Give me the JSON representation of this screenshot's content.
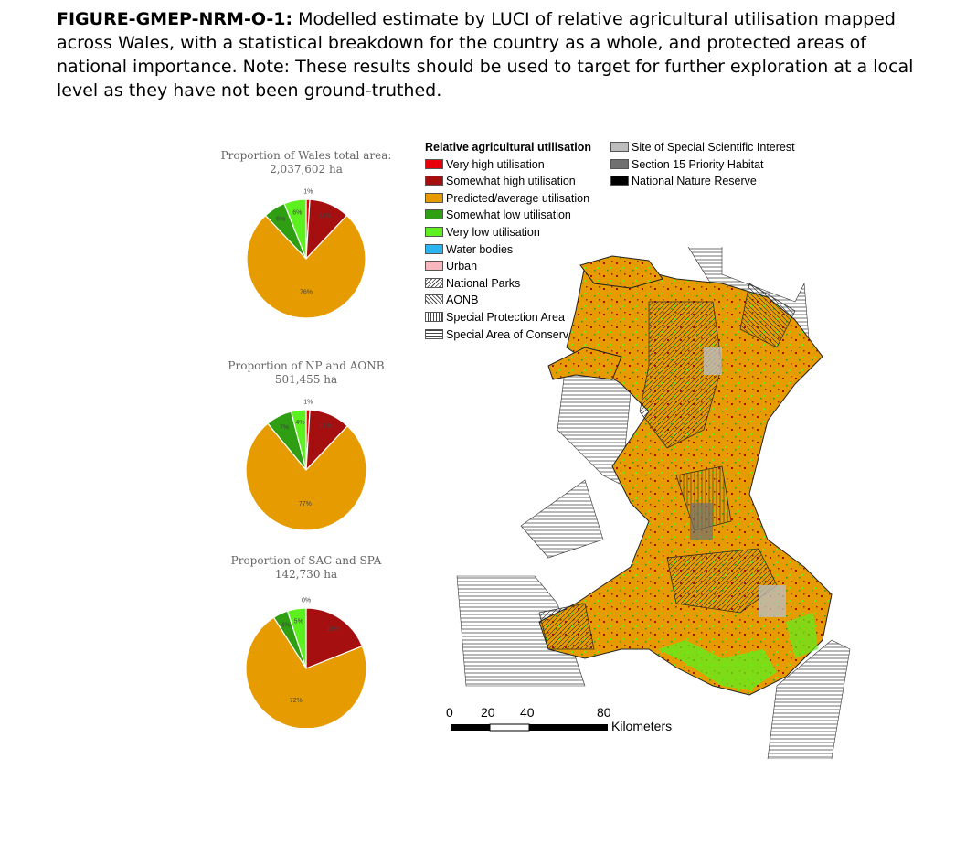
{
  "caption": {
    "label": "FIGURE-GMEP-NRM-O-1:",
    "text": " Modelled estimate by LUCI of relative agricultural utilisation mapped across Wales, with a statistical breakdown for the country as a whole, and protected areas of national importance.  Note: These results should be used to target for further exploration at a local level as they have not been ground-truthed."
  },
  "colors": {
    "very_high": "#e8000b",
    "somewhat_high": "#a50f0f",
    "average": "#e69c00",
    "somewhat_low": "#2f9e12",
    "very_low": "#5cf01e",
    "water": "#2bb5f0",
    "urban": "#f7b7bd",
    "sssi": "#bdbdbd",
    "priority": "#707070",
    "nnr": "#000000"
  },
  "chart_data": [
    {
      "type": "pie",
      "title": "Proportion of Wales total area:",
      "subtitle": "2,037,602  ha",
      "slices": [
        {
          "category": "Very high utilisation",
          "value": 1,
          "label": "1%",
          "color": "#e8000b"
        },
        {
          "category": "Somewhat high utilisation",
          "value": 11,
          "label": "11%",
          "color": "#a50f0f"
        },
        {
          "category": "Predicted/average utilisation",
          "value": 76,
          "label": "76%",
          "color": "#e69c00"
        },
        {
          "category": "Somewhat low utilisation",
          "value": 6,
          "label": "6%",
          "color": "#2f9e12"
        },
        {
          "category": "Very low utilisation",
          "value": 6,
          "label": "6%",
          "color": "#5cf01e"
        }
      ]
    },
    {
      "type": "pie",
      "title": "Proportion of NP and AONB",
      "subtitle": "501,455 ha",
      "slices": [
        {
          "category": "Very high utilisation",
          "value": 1,
          "label": "1%",
          "color": "#e8000b"
        },
        {
          "category": "Somewhat high utilisation",
          "value": 11,
          "label": "11%",
          "color": "#a50f0f"
        },
        {
          "category": "Predicted/average utilisation",
          "value": 77,
          "label": "77%",
          "color": "#e69c00"
        },
        {
          "category": "Somewhat low utilisation",
          "value": 7,
          "label": "7%",
          "color": "#2f9e12"
        },
        {
          "category": "Very low utilisation",
          "value": 4,
          "label": "4%",
          "color": "#5cf01e"
        }
      ]
    },
    {
      "type": "pie",
      "title": "Proportion of SAC and SPA",
      "subtitle": "142,730 ha",
      "slices": [
        {
          "category": "Very high utilisation",
          "value": 0,
          "label": "0%",
          "color": "#e8000b"
        },
        {
          "category": "Somewhat high utilisation",
          "value": 19,
          "label": "19%",
          "color": "#a50f0f"
        },
        {
          "category": "Predicted/average utilisation",
          "value": 72,
          "label": "72%",
          "color": "#e69c00"
        },
        {
          "category": "Somewhat low utilisation",
          "value": 4,
          "label": "4%",
          "color": "#2f9e12"
        },
        {
          "category": "Very low utilisation",
          "value": 5,
          "label": "5%",
          "color": "#5cf01e"
        }
      ]
    }
  ],
  "legend": {
    "title": "Relative agricultural utilisation",
    "items": [
      {
        "label": "Very high utilisation",
        "key": "very_high",
        "pattern": "solid",
        "color": "#e8000b"
      },
      {
        "label": "Somewhat high utilisation",
        "key": "somewhat_high",
        "pattern": "solid",
        "color": "#a50f0f"
      },
      {
        "label": "Predicted/average utilisation",
        "key": "average",
        "pattern": "solid",
        "color": "#e69c00"
      },
      {
        "label": "Somewhat low utilisation",
        "key": "somewhat_low",
        "pattern": "solid",
        "color": "#2f9e12"
      },
      {
        "label": "Very low utilisation",
        "key": "very_low",
        "pattern": "solid",
        "color": "#5cf01e"
      },
      {
        "label": "Water bodies",
        "key": "water",
        "pattern": "solid",
        "color": "#2bb5f0"
      },
      {
        "label": "Urban",
        "key": "urban",
        "pattern": "solid",
        "color": "#f7b7bd"
      },
      {
        "label": "National Parks",
        "key": "np",
        "pattern": "diag-back"
      },
      {
        "label": "AONB",
        "key": "aonb",
        "pattern": "diag-fwd"
      },
      {
        "label": "Special Protection Area",
        "key": "spa",
        "pattern": "vertical"
      },
      {
        "label": "Special Area of Conservation",
        "key": "sac",
        "pattern": "horizontal"
      }
    ],
    "items2": [
      {
        "label": "Site of Special Scientific Interest",
        "key": "sssi",
        "pattern": "solid",
        "color": "#bdbdbd"
      },
      {
        "label": "Section 15 Priority Habitat",
        "key": "priority",
        "pattern": "solid",
        "color": "#707070"
      },
      {
        "label": "National Nature Reserve",
        "key": "nnr",
        "pattern": "solid",
        "color": "#000000"
      }
    ]
  },
  "scalebar": {
    "ticks": [
      "0",
      "20",
      "40",
      "80"
    ],
    "unit": "Kilometers"
  }
}
